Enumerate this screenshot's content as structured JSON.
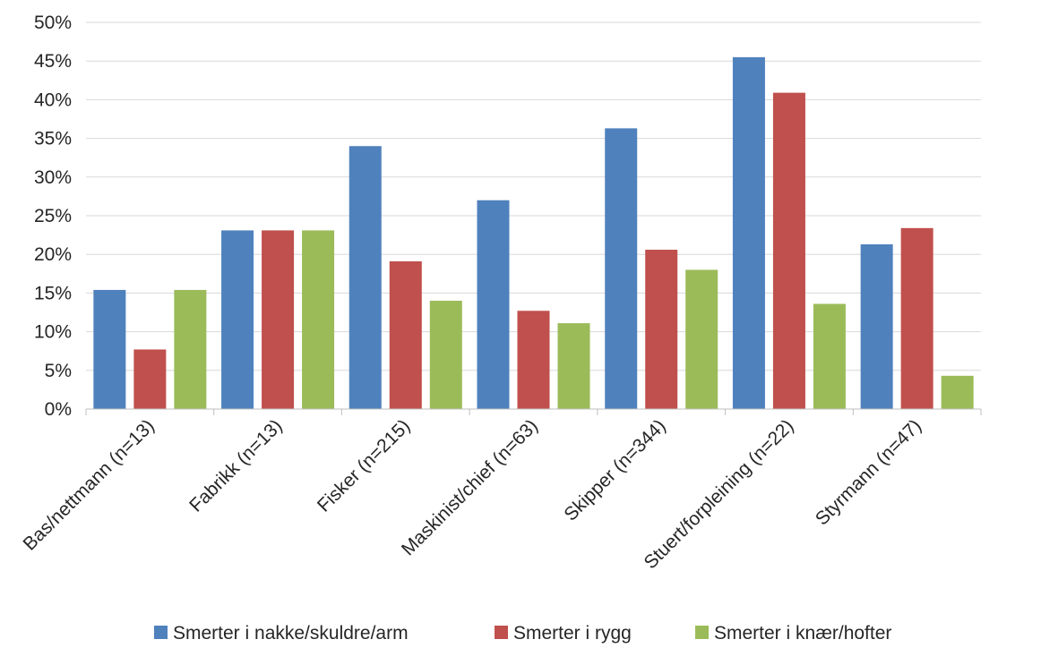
{
  "chart_data": {
    "type": "bar",
    "categories": [
      "Bas/nettmann (n=13)",
      "Fabrikk (n=13)",
      "Fisker (n=215)",
      "Maskinist/chief (n=63)",
      "Skipper (n=344)",
      "Stuert/forpleining (n=22)",
      "Styrmann (n=47)"
    ],
    "series": [
      {
        "name": "Smerter i nakke/skuldre/arm",
        "color": "#4f81bd",
        "values": [
          15.4,
          23.1,
          34.0,
          27.0,
          36.3,
          45.5,
          21.3
        ]
      },
      {
        "name": "Smerter i rygg",
        "color": "#c0504d",
        "values": [
          7.7,
          23.1,
          19.1,
          12.7,
          20.6,
          40.9,
          23.4
        ]
      },
      {
        "name": "Smerter i knær/hofter",
        "color": "#9bbb59",
        "values": [
          15.4,
          23.1,
          14.0,
          11.1,
          18.0,
          13.6,
          4.3
        ]
      }
    ],
    "ylim": [
      0,
      50
    ],
    "yticks": [
      "0%",
      "5%",
      "10%",
      "15%",
      "20%",
      "25%",
      "30%",
      "35%",
      "40%",
      "45%",
      "50%"
    ],
    "grid": true,
    "legend_position": "bottom",
    "title": "",
    "xlabel": "",
    "ylabel": ""
  }
}
